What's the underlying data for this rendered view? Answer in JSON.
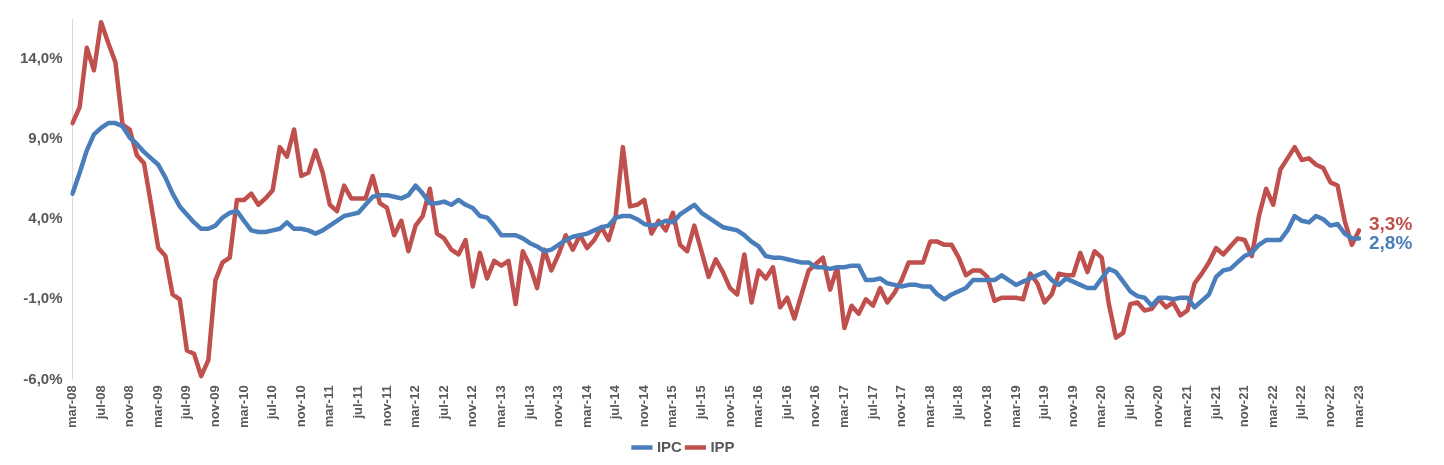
{
  "chart_data": {
    "type": "line",
    "categories": [
      "mar-08",
      null,
      null,
      null,
      "jul-08",
      null,
      null,
      null,
      "nov-08",
      null,
      null,
      null,
      "mar-09",
      null,
      null,
      null,
      "jul-09",
      null,
      null,
      null,
      "nov-09",
      null,
      null,
      null,
      "mar-10",
      null,
      null,
      null,
      "jul-10",
      null,
      null,
      null,
      "nov-10",
      null,
      null,
      null,
      "mar-11",
      null,
      null,
      null,
      "jul-11",
      null,
      null,
      null,
      "nov-11",
      null,
      null,
      null,
      "mar-12",
      null,
      null,
      null,
      "jul-12",
      null,
      null,
      null,
      "nov-12",
      null,
      null,
      null,
      "mar-13",
      null,
      null,
      null,
      "jul-13",
      null,
      null,
      null,
      "nov-13",
      null,
      null,
      null,
      "mar-14",
      null,
      null,
      null,
      "jul-14",
      null,
      null,
      null,
      "nov-14",
      null,
      null,
      null,
      "mar-15",
      null,
      null,
      null,
      "jul-15",
      null,
      null,
      null,
      "nov-15",
      null,
      null,
      null,
      "mar-16",
      null,
      null,
      null,
      "jul-16",
      null,
      null,
      null,
      "nov-16",
      null,
      null,
      null,
      "mar-17",
      null,
      null,
      null,
      "jul-17",
      null,
      null,
      null,
      "nov-17",
      null,
      null,
      null,
      "mar-18",
      null,
      null,
      null,
      "jul-18",
      null,
      null,
      null,
      "nov-18",
      null,
      null,
      null,
      "mar-19",
      null,
      null,
      null,
      "jul-19",
      null,
      null,
      null,
      "nov-19",
      null,
      null,
      null,
      "mar-20",
      null,
      null,
      null,
      "jul-20",
      null,
      null,
      null,
      "nov-20",
      null,
      null,
      null,
      "mar-21",
      null,
      null,
      null,
      "jul-21",
      null,
      null,
      null,
      "nov-21",
      null,
      null,
      null,
      "mar-22",
      null,
      null,
      null,
      "jul-22",
      null,
      null,
      null,
      "nov-22",
      null,
      null,
      null,
      "mar-23"
    ],
    "series": [
      {
        "name": "IPC",
        "color": "#4a7ebb",
        "values": [
          5.6,
          6.9,
          8.3,
          9.3,
          9.7,
          10.0,
          10.0,
          9.8,
          9.1,
          8.7,
          8.2,
          7.8,
          7.4,
          6.6,
          5.6,
          4.8,
          4.3,
          3.8,
          3.4,
          3.4,
          3.6,
          4.1,
          4.4,
          4.5,
          3.9,
          3.3,
          3.2,
          3.2,
          3.3,
          3.4,
          3.8,
          3.4,
          3.4,
          3.3,
          3.1,
          3.3,
          3.6,
          3.9,
          4.2,
          4.3,
          4.4,
          4.9,
          5.4,
          5.5,
          5.5,
          5.4,
          5.3,
          5.5,
          6.1,
          5.6,
          5.0,
          5.0,
          5.1,
          4.9,
          5.2,
          4.9,
          4.7,
          4.2,
          4.1,
          3.6,
          3.0,
          3.0,
          3.0,
          2.8,
          2.5,
          2.3,
          2.0,
          2.1,
          2.4,
          2.7,
          2.9,
          3.0,
          3.1,
          3.3,
          3.5,
          3.6,
          4.1,
          4.2,
          4.2,
          4.0,
          3.7,
          3.6,
          3.7,
          3.9,
          3.8,
          4.3,
          4.6,
          4.9,
          4.4,
          4.1,
          3.8,
          3.5,
          3.4,
          3.3,
          3.0,
          2.6,
          2.3,
          1.7,
          1.6,
          1.6,
          1.5,
          1.4,
          1.3,
          1.3,
          1.0,
          1.0,
          0.9,
          1.0,
          1.0,
          1.1,
          1.1,
          0.2,
          0.2,
          0.3,
          0.0,
          -0.1,
          -0.2,
          -0.1,
          -0.1,
          -0.2,
          -0.2,
          -0.7,
          -1.0,
          -0.7,
          -0.5,
          -0.3,
          0.2,
          0.2,
          0.2,
          0.2,
          0.5,
          0.2,
          -0.1,
          0.1,
          0.3,
          0.5,
          0.7,
          0.2,
          -0.1,
          0.3,
          0.1,
          -0.1,
          -0.3,
          -0.3,
          0.3,
          0.9,
          0.7,
          0.1,
          -0.5,
          -0.8,
          -0.9,
          -1.4,
          -0.9,
          -0.9,
          -1.0,
          -0.9,
          -0.9,
          -1.5,
          -1.1,
          -0.7,
          0.4,
          0.8,
          0.9,
          1.3,
          1.7,
          1.9,
          2.4,
          2.7,
          2.7,
          2.7,
          3.3,
          4.2,
          3.9,
          3.8,
          4.2,
          4.0,
          3.6,
          3.7,
          3.1,
          2.8,
          2.8
        ],
        "value_labels": [
          null,
          null,
          null,
          null,
          null,
          null,
          null,
          null,
          null,
          null,
          null,
          null,
          null,
          null,
          null,
          null,
          null,
          null,
          null,
          null,
          null,
          null,
          null,
          null,
          null,
          null,
          null,
          null,
          null,
          null,
          null,
          null,
          null,
          null,
          null,
          null,
          null,
          null,
          null,
          null,
          null,
          null,
          null,
          null,
          null,
          null,
          null,
          null,
          null,
          null,
          null,
          null,
          null,
          null,
          null,
          null,
          null,
          null,
          null,
          null,
          null,
          null,
          null,
          null,
          null,
          null,
          null,
          null,
          null,
          null,
          null,
          null,
          null,
          null,
          null,
          null,
          null,
          null,
          null,
          null,
          null,
          null,
          null,
          null,
          null,
          null,
          null,
          null,
          null,
          null,
          null,
          null,
          null,
          null,
          null,
          null,
          null,
          null,
          null,
          null,
          null,
          null,
          null,
          null,
          null,
          null,
          null,
          null,
          null,
          null,
          null,
          null,
          null,
          null,
          null,
          null,
          null,
          null,
          null,
          null,
          null,
          null,
          null,
          null,
          null,
          null,
          null,
          null,
          null,
          null,
          null,
          null,
          null,
          null,
          null,
          null,
          null,
          null,
          null,
          null,
          null,
          null,
          null,
          null,
          null,
          null,
          null,
          null,
          null,
          null,
          null,
          null,
          null,
          null,
          null,
          null,
          null,
          null,
          null,
          null,
          null,
          null,
          null,
          null,
          null,
          null,
          null,
          null,
          null,
          null,
          null,
          null,
          null,
          null,
          null,
          null,
          null,
          null,
          null,
          null,
          "2,8%"
        ]
      },
      {
        "name": "IPP",
        "color": "#c0504d",
        "values": [
          10.0,
          11.0,
          14.7,
          13.3,
          16.3,
          15.0,
          13.8,
          9.9,
          9.6,
          8.0,
          7.5,
          4.9,
          2.2,
          1.7,
          -0.7,
          -1.0,
          -4.2,
          -4.4,
          -5.8,
          -4.8,
          0.2,
          1.3,
          1.6,
          5.2,
          5.2,
          5.6,
          4.9,
          5.3,
          5.8,
          8.5,
          7.9,
          9.6,
          6.7,
          6.9,
          8.3,
          6.9,
          4.9,
          4.5,
          6.1,
          5.3,
          5.3,
          5.3,
          6.7,
          5.0,
          4.7,
          3.0,
          3.9,
          2.0,
          3.6,
          4.2,
          5.9,
          3.1,
          2.8,
          2.1,
          1.8,
          2.7,
          -0.2,
          1.9,
          0.3,
          1.4,
          1.1,
          1.4,
          -1.3,
          2.0,
          1.1,
          -0.3,
          2.1,
          0.8,
          1.8,
          3.0,
          2.1,
          3.0,
          2.2,
          2.7,
          3.5,
          2.7,
          4.2,
          8.5,
          4.8,
          4.9,
          5.2,
          3.1,
          3.9,
          3.3,
          4.4,
          2.4,
          2.0,
          3.6,
          2.0,
          0.4,
          1.5,
          0.7,
          -0.3,
          -0.7,
          1.8,
          -1.2,
          0.8,
          0.3,
          1.0,
          -1.5,
          -0.9,
          -2.2,
          -0.7,
          0.8,
          1.2,
          1.6,
          -0.4,
          1.0,
          -2.8,
          -1.4,
          -1.9,
          -1.0,
          -1.4,
          -0.3,
          -1.2,
          -0.6,
          0.2,
          1.3,
          1.3,
          1.3,
          2.6,
          2.6,
          2.4,
          2.4,
          1.6,
          0.5,
          0.8,
          0.8,
          0.4,
          -1.1,
          -0.9,
          -0.9,
          -0.9,
          -1.0,
          0.6,
          0.0,
          -1.2,
          -0.7,
          0.6,
          0.5,
          0.5,
          1.9,
          0.7,
          2.0,
          1.6,
          -1.3,
          -3.4,
          -3.1,
          -1.3,
          -1.2,
          -1.7,
          -1.6,
          -1.0,
          -1.5,
          -1.2,
          -2.0,
          -1.7,
          0.0,
          0.6,
          1.3,
          2.2,
          1.8,
          2.3,
          2.8,
          2.7,
          1.7,
          4.2,
          5.9,
          4.9,
          7.1,
          7.8,
          8.5,
          7.7,
          7.8,
          7.4,
          7.2,
          6.3,
          6.1,
          3.9,
          2.4,
          3.3
        ],
        "value_labels": [
          null,
          null,
          null,
          null,
          null,
          null,
          null,
          null,
          null,
          null,
          null,
          null,
          null,
          null,
          null,
          null,
          null,
          null,
          null,
          null,
          null,
          null,
          null,
          null,
          null,
          null,
          null,
          null,
          null,
          null,
          null,
          null,
          null,
          null,
          null,
          null,
          null,
          null,
          null,
          null,
          null,
          null,
          null,
          null,
          null,
          null,
          null,
          null,
          null,
          null,
          null,
          null,
          null,
          null,
          null,
          null,
          null,
          null,
          null,
          null,
          null,
          null,
          null,
          null,
          null,
          null,
          null,
          null,
          null,
          null,
          null,
          null,
          null,
          null,
          null,
          null,
          null,
          null,
          null,
          null,
          null,
          null,
          null,
          null,
          null,
          null,
          null,
          null,
          null,
          null,
          null,
          null,
          null,
          null,
          null,
          null,
          null,
          null,
          null,
          null,
          null,
          null,
          null,
          null,
          null,
          null,
          null,
          null,
          null,
          null,
          null,
          null,
          null,
          null,
          null,
          null,
          null,
          null,
          null,
          null,
          null,
          null,
          null,
          null,
          null,
          null,
          null,
          null,
          null,
          null,
          null,
          null,
          null,
          null,
          null,
          null,
          null,
          null,
          null,
          null,
          null,
          null,
          null,
          null,
          null,
          null,
          null,
          null,
          null,
          null,
          null,
          null,
          null,
          null,
          null,
          null,
          null,
          null,
          null,
          null,
          null,
          null,
          null,
          null,
          null,
          null,
          null,
          null,
          null,
          null,
          null,
          null,
          null,
          null,
          null,
          null,
          null,
          null,
          null,
          null,
          "3,3%"
        ]
      }
    ],
    "ylim": [
      -6,
      16.5
    ],
    "yticks": [
      {
        "value": -6,
        "label": "-6,0%"
      },
      {
        "value": -1,
        "label": "-1,0%"
      },
      {
        "value": 4,
        "label": "4,0%"
      },
      {
        "value": 9,
        "label": "9,0%"
      },
      {
        "value": 14,
        "label": "14,0%"
      }
    ],
    "legend": "bottom"
  }
}
